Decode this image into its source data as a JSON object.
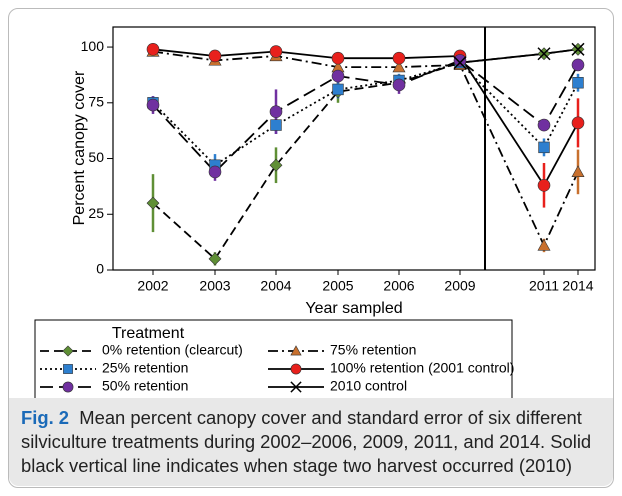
{
  "chart_data": {
    "type": "line",
    "y_label": "Percent canopy cover",
    "x_label": "Year sampled",
    "categories": [
      "2002",
      "2003",
      "2004",
      "2005",
      "2006",
      "2009",
      "2011",
      "2014"
    ],
    "ylim": [
      0,
      109
    ],
    "yticks": [
      0,
      25,
      50,
      75,
      100
    ],
    "legend_title": "Treatment",
    "series": [
      {
        "name": "0% retention (clearcut)",
        "color": "#5f8f35",
        "marker": "diamond",
        "linestyle": "dashed",
        "values": [
          30,
          5,
          47,
          80,
          84,
          93,
          97,
          99
        ],
        "errors": [
          13,
          3,
          8,
          5,
          2,
          3,
          1,
          1
        ]
      },
      {
        "name": "75% retention",
        "color": "#c8702e",
        "marker": "triangle",
        "linestyle": "dashdot",
        "values": [
          98,
          94,
          96,
          91,
          91,
          92,
          11,
          44
        ],
        "errors": [
          1,
          1,
          1,
          1,
          1,
          1,
          3,
          10
        ]
      },
      {
        "name": "25% retention",
        "color": "#2d7fcf",
        "marker": "square",
        "linestyle": "dotted",
        "values": [
          75,
          47,
          65,
          81,
          85,
          93,
          55,
          84
        ],
        "errors": [
          3,
          5,
          4,
          4,
          3,
          2,
          4,
          4
        ]
      },
      {
        "name": "100% retention (2001 control)",
        "color": "#e8201c",
        "marker": "circle",
        "linestyle": "solid",
        "values": [
          99,
          96,
          98,
          95,
          95,
          96,
          38,
          66
        ],
        "errors": [
          1,
          1,
          1,
          1,
          1,
          1,
          10,
          11
        ]
      },
      {
        "name": "50% retention",
        "color": "#7030a0",
        "marker": "circle",
        "linestyle": "longdash",
        "values": [
          74,
          44,
          71,
          87,
          83,
          94,
          65,
          92
        ],
        "errors": [
          4,
          4,
          10,
          3,
          4,
          2,
          2,
          1
        ]
      },
      {
        "name": "2010 control",
        "color": "#000000",
        "marker": "x",
        "linestyle": "solid",
        "values": [
          null,
          null,
          null,
          null,
          null,
          93,
          97,
          99
        ]
      }
    ]
  },
  "caption": {
    "label": "Fig. 2",
    "text": "Mean percent canopy cover and standard error of six different silviculture treatments during 2002–2006, 2009, 2011, and 2014. Solid black vertical line indicates when stage two harvest occurred (2010)"
  }
}
